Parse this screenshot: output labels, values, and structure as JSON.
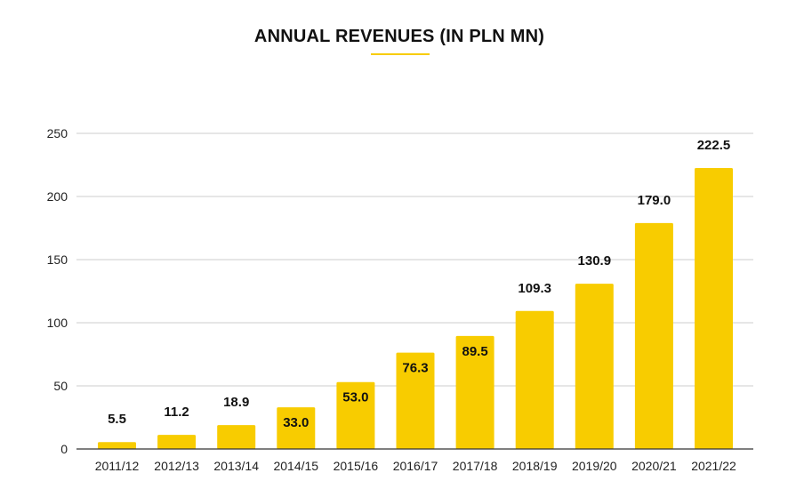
{
  "title": "ANNUAL REVENUES (IN PLN MN)",
  "colors": {
    "bar": "#f8cc00",
    "grid": "#cccccc",
    "axis": "#333333",
    "accent": "#f8cc00"
  },
  "chart_data": {
    "type": "bar",
    "title": "ANNUAL REVENUES (IN PLN MN)",
    "xlabel": "",
    "ylabel": "",
    "categories": [
      "2011/12",
      "2012/13",
      "2013/14",
      "2014/15",
      "2015/16",
      "2016/17",
      "2017/18",
      "2018/19",
      "2019/20",
      "2020/21",
      "2021/22"
    ],
    "values": [
      5.5,
      11.2,
      18.9,
      33.0,
      53.0,
      76.3,
      89.5,
      109.3,
      130.9,
      179.0,
      222.5
    ],
    "data_labels": [
      "5.5",
      "11.2",
      "18.9",
      "33.0",
      "53.0",
      "76.3",
      "89.5",
      "109.3",
      "130.9",
      "179.0",
      "222.5"
    ],
    "yticks": [
      0,
      50,
      100,
      150,
      200,
      250
    ],
    "ylim": [
      0,
      250
    ],
    "grid": true,
    "legend": "none"
  }
}
